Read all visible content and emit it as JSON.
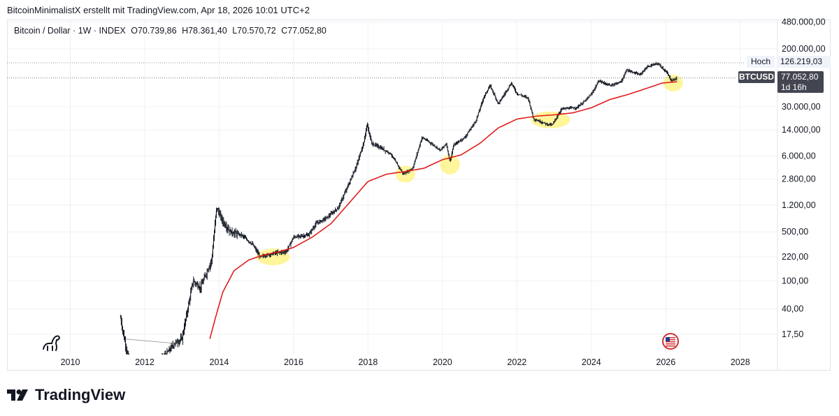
{
  "caption": {
    "author": "BitcoinMinimalistX",
    "rest": " erstellt mit TradingView.com, Apr 18, 2026 10:01 UTC+2"
  },
  "legend": {
    "symbol": "Bitcoin / Dollar · 1W · INDEX",
    "open": "O70.739,86",
    "high": "H78.361,40",
    "low": "L70.570,72",
    "close": "C77.052,80"
  },
  "tags": {
    "high_label": "Hoch",
    "high_value": "126.219,03",
    "ticker": "BTCUSD",
    "last_value": "77.052,80",
    "countdown": "1d 16h"
  },
  "brand": "TradingView",
  "colors": {
    "candles": "#131722",
    "ma_line": "#e11d1d",
    "highlight": "#fff27a",
    "tag_dark": "#434651",
    "grid": "#eef0f4"
  },
  "icons": [
    "dino-icon",
    "us-flag-icon",
    "tradingview-logo-icon"
  ],
  "chart_data": {
    "type": "line",
    "y_scale": "log",
    "ylim": [
      9,
      520000
    ],
    "xlim": [
      2008.3,
      2029.0
    ],
    "x_ticks": [
      "2010",
      "2012",
      "2014",
      "2016",
      "2018",
      "2020",
      "2022",
      "2024",
      "2026",
      "2028"
    ],
    "y_ticks": [
      {
        "v": 480000,
        "label": "480.000,00"
      },
      {
        "v": 200000,
        "label": "200.000,00"
      },
      {
        "v": 30000,
        "label": "30.000,00"
      },
      {
        "v": 14000,
        "label": "14.000,00"
      },
      {
        "v": 6000,
        "label": "6.000,00"
      },
      {
        "v": 2800,
        "label": "2.800,00"
      },
      {
        "v": 1200,
        "label": "1.200,00"
      },
      {
        "v": 500,
        "label": "500,00"
      },
      {
        "v": 220,
        "label": "220,00"
      },
      {
        "v": 100,
        "label": "100,00"
      },
      {
        "v": 40,
        "label": "40,00"
      },
      {
        "v": 17.5,
        "label": "17,50"
      }
    ],
    "high_value": 126219.03,
    "last_value": 77052.8,
    "price_points": [
      [
        2011.35,
        30
      ],
      [
        2011.45,
        15
      ],
      [
        2011.7,
        4
      ],
      [
        2012.0,
        5
      ],
      [
        2012.5,
        8
      ],
      [
        2012.8,
        13
      ],
      [
        2013.0,
        15
      ],
      [
        2013.3,
        100
      ],
      [
        2013.5,
        80
      ],
      [
        2013.8,
        200
      ],
      [
        2013.93,
        1100
      ],
      [
        2014.1,
        700
      ],
      [
        2014.3,
        500
      ],
      [
        2014.6,
        450
      ],
      [
        2014.9,
        330
      ],
      [
        2015.1,
        220
      ],
      [
        2015.5,
        250
      ],
      [
        2015.8,
        260
      ],
      [
        2016.0,
        420
      ],
      [
        2016.4,
        450
      ],
      [
        2016.6,
        650
      ],
      [
        2016.9,
        800
      ],
      [
        2017.2,
        1100
      ],
      [
        2017.5,
        2500
      ],
      [
        2017.7,
        4500
      ],
      [
        2017.9,
        10000
      ],
      [
        2017.97,
        17000
      ],
      [
        2018.1,
        9000
      ],
      [
        2018.3,
        8000
      ],
      [
        2018.6,
        6500
      ],
      [
        2018.85,
        4000
      ],
      [
        2018.95,
        3300
      ],
      [
        2019.2,
        4000
      ],
      [
        2019.45,
        11000
      ],
      [
        2019.7,
        9000
      ],
      [
        2019.95,
        7200
      ],
      [
        2020.1,
        9000
      ],
      [
        2020.2,
        5000
      ],
      [
        2020.3,
        8500
      ],
      [
        2020.6,
        11000
      ],
      [
        2020.9,
        19000
      ],
      [
        2021.1,
        40000
      ],
      [
        2021.28,
        60000
      ],
      [
        2021.5,
        33000
      ],
      [
        2021.85,
        65000
      ],
      [
        2022.0,
        46000
      ],
      [
        2022.3,
        40000
      ],
      [
        2022.45,
        20000
      ],
      [
        2022.8,
        17000
      ],
      [
        2022.95,
        16500
      ],
      [
        2023.2,
        28000
      ],
      [
        2023.6,
        29000
      ],
      [
        2023.8,
        35000
      ],
      [
        2024.0,
        45000
      ],
      [
        2024.2,
        70000
      ],
      [
        2024.5,
        60000
      ],
      [
        2024.8,
        68000
      ],
      [
        2024.95,
        100000
      ],
      [
        2025.3,
        85000
      ],
      [
        2025.5,
        110000
      ],
      [
        2025.78,
        124000
      ],
      [
        2025.9,
        108000
      ],
      [
        2026.05,
        88000
      ],
      [
        2026.15,
        70000
      ],
      [
        2026.3,
        77052.8
      ]
    ],
    "ma_points": [
      [
        2013.75,
        15
      ],
      [
        2013.9,
        30
      ],
      [
        2014.1,
        70
      ],
      [
        2014.4,
        140
      ],
      [
        2014.8,
        200
      ],
      [
        2015.2,
        235
      ],
      [
        2015.6,
        260
      ],
      [
        2016.0,
        300
      ],
      [
        2016.5,
        420
      ],
      [
        2017.0,
        650
      ],
      [
        2017.5,
        1300
      ],
      [
        2018.0,
        2600
      ],
      [
        2018.5,
        3300
      ],
      [
        2019.0,
        3600
      ],
      [
        2019.5,
        4000
      ],
      [
        2020.0,
        5300
      ],
      [
        2020.5,
        6200
      ],
      [
        2021.0,
        9000
      ],
      [
        2021.5,
        15000
      ],
      [
        2022.0,
        20000
      ],
      [
        2022.5,
        22000
      ],
      [
        2023.0,
        23000
      ],
      [
        2023.5,
        24500
      ],
      [
        2024.0,
        29000
      ],
      [
        2024.5,
        38000
      ],
      [
        2025.0,
        45000
      ],
      [
        2025.5,
        55000
      ],
      [
        2025.9,
        65000
      ],
      [
        2026.3,
        68000
      ]
    ],
    "highlights": [
      {
        "x": 2015.45,
        "y": 220
      },
      {
        "x": 2019.0,
        "y": 3300
      },
      {
        "x": 2020.2,
        "y": 4500
      },
      {
        "x": 2022.9,
        "y": 19500
      },
      {
        "x": 2026.2,
        "y": 65000
      }
    ]
  }
}
